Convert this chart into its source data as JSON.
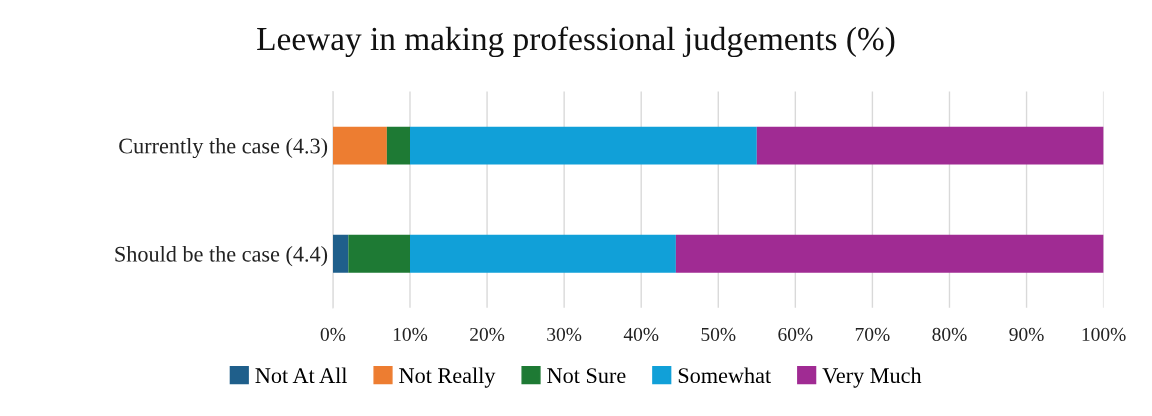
{
  "chart_data": {
    "type": "bar",
    "orientation": "horizontal",
    "stacked": true,
    "title": "Leeway in making professional judgements (%)",
    "categories": [
      "Currently the case (4.3)",
      "Should be the case (4.4)"
    ],
    "series": [
      {
        "name": "Not At All",
        "color": "#1f5f8b",
        "values": [
          0,
          2
        ]
      },
      {
        "name": "Not Really",
        "color": "#ed7d31",
        "values": [
          7,
          0
        ]
      },
      {
        "name": "Not Sure",
        "color": "#1e7a34",
        "values": [
          3,
          8
        ]
      },
      {
        "name": "Somewhat",
        "color": "#11a0d8",
        "values": [
          45,
          34.5
        ]
      },
      {
        "name": "Very Much",
        "color": "#a02b93",
        "values": [
          45,
          55.5
        ]
      }
    ],
    "xlim": [
      0,
      100
    ],
    "xticks": [
      {
        "value": 0,
        "label": "0%"
      },
      {
        "value": 10,
        "label": "10%"
      },
      {
        "value": 20,
        "label": "20%"
      },
      {
        "value": 30,
        "label": "30%"
      },
      {
        "value": 40,
        "label": "40%"
      },
      {
        "value": 50,
        "label": "50%"
      },
      {
        "value": 60,
        "label": "60%"
      },
      {
        "value": 70,
        "label": "70%"
      },
      {
        "value": 80,
        "label": "80%"
      },
      {
        "value": 90,
        "label": "90%"
      },
      {
        "value": 100,
        "label": "100%"
      }
    ],
    "grid": "x",
    "legend": "bottom"
  }
}
